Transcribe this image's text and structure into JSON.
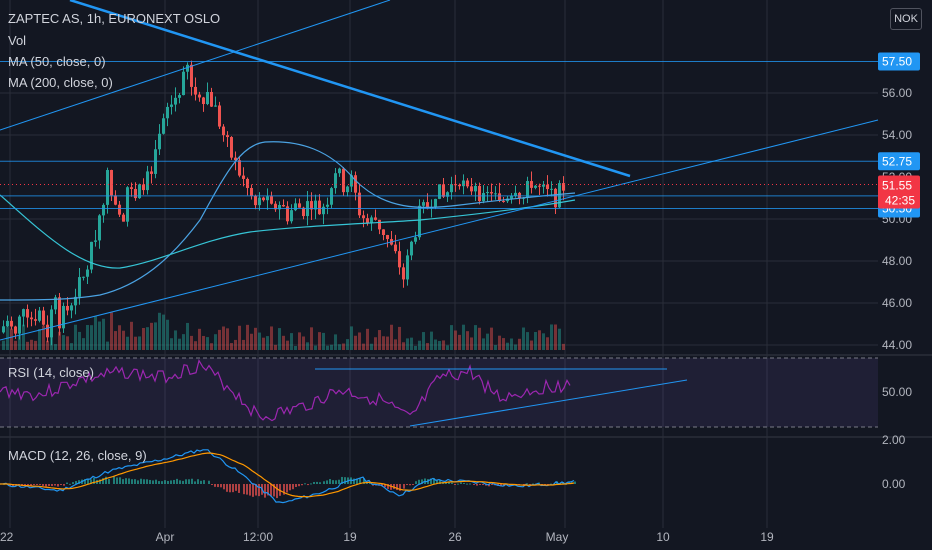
{
  "header": {
    "title": "ZAPTEC AS, 1h, EURONEXT OSLO",
    "indicators": [
      "Vol",
      "MA (50, close, 0)",
      "MA (200, close, 0)"
    ],
    "currency": "NOK"
  },
  "colors": {
    "background": "#131722",
    "grid": "#2a2e39",
    "up": "#26a69a",
    "down": "#ef5350",
    "trendline": "#2196f3",
    "rsi": "#9c27b0",
    "macd": "#2196f3",
    "signal": "#ff9800",
    "text": "#b2b5be",
    "price_tag": "#f23645",
    "level_tag": "#2196f3"
  },
  "chart_data": [
    {
      "type": "candlestick",
      "pane": "price",
      "title": "ZAPTEC AS, 1h, EURONEXT OSLO",
      "y_ticks": [
        44.0,
        46.0,
        48.0,
        50.0,
        54.0,
        56.0
      ],
      "ylim": [
        43.0,
        58.4
      ],
      "last_price": 51.55,
      "countdown": "42:35",
      "horizontal_levels": [
        57.5,
        52.75,
        51.1,
        50.5
      ],
      "level_labels": [
        "57.50",
        "52.75",
        "51.10",
        "50.50"
      ],
      "hidden_tick_behind_price": "52.00",
      "x_ticks": [
        "22",
        "Apr",
        "12:00",
        "19",
        "26",
        "May",
        "10",
        "19"
      ],
      "ohlc_path": [
        {
          "t": 0,
          "c": 44.6
        },
        {
          "t": 2,
          "c": 45.2
        },
        {
          "t": 4,
          "c": 44.4
        },
        {
          "t": 6,
          "c": 46.0
        },
        {
          "t": 8,
          "c": 45.3
        },
        {
          "t": 10,
          "c": 45.6
        },
        {
          "t": 12,
          "c": 44.6
        },
        {
          "t": 14,
          "c": 46.6
        },
        {
          "t": 15,
          "c": 45.2
        },
        {
          "t": 17,
          "c": 45.7
        },
        {
          "t": 19,
          "c": 46.5
        },
        {
          "t": 21,
          "c": 47.2
        },
        {
          "t": 23,
          "c": 48.5
        },
        {
          "t": 25,
          "c": 50.2
        },
        {
          "t": 27,
          "c": 52.0
        },
        {
          "t": 29,
          "c": 51.0
        },
        {
          "t": 31,
          "c": 50.2
        },
        {
          "t": 32,
          "c": 51.6
        },
        {
          "t": 34,
          "c": 50.8
        },
        {
          "t": 36,
          "c": 51.8
        },
        {
          "t": 38,
          "c": 52.0
        },
        {
          "t": 40,
          "c": 53.8
        },
        {
          "t": 42,
          "c": 55.2
        },
        {
          "t": 44,
          "c": 55.8
        },
        {
          "t": 46,
          "c": 56.6
        },
        {
          "t": 47,
          "c": 57.2
        },
        {
          "t": 48,
          "c": 56.2
        },
        {
          "t": 50,
          "c": 55.8
        },
        {
          "t": 52,
          "c": 56.0
        },
        {
          "t": 54,
          "c": 55.2
        },
        {
          "t": 56,
          "c": 54.0
        },
        {
          "t": 58,
          "c": 53.0
        },
        {
          "t": 60,
          "c": 52.2
        },
        {
          "t": 62,
          "c": 51.4
        },
        {
          "t": 64,
          "c": 50.6
        },
        {
          "t": 66,
          "c": 51.0
        },
        {
          "t": 68,
          "c": 50.4
        },
        {
          "t": 70,
          "c": 50.8
        },
        {
          "t": 72,
          "c": 50.2
        },
        {
          "t": 74,
          "c": 50.6
        },
        {
          "t": 76,
          "c": 50.5
        },
        {
          "t": 78,
          "c": 50.9
        },
        {
          "t": 80,
          "c": 50.4
        },
        {
          "t": 82,
          "c": 51.0
        },
        {
          "t": 84,
          "c": 52.4
        },
        {
          "t": 86,
          "c": 51.6
        },
        {
          "t": 88,
          "c": 51.8
        },
        {
          "t": 90,
          "c": 50.4
        },
        {
          "t": 92,
          "c": 49.8
        },
        {
          "t": 94,
          "c": 50.0
        },
        {
          "t": 96,
          "c": 49.4
        },
        {
          "t": 98,
          "c": 48.6
        },
        {
          "t": 100,
          "c": 47.8
        },
        {
          "t": 101,
          "c": 47.2
        },
        {
          "t": 103,
          "c": 48.8
        },
        {
          "t": 105,
          "c": 50.2
        },
        {
          "t": 107,
          "c": 50.6
        },
        {
          "t": 109,
          "c": 51.4
        },
        {
          "t": 111,
          "c": 51.0
        },
        {
          "t": 113,
          "c": 51.6
        },
        {
          "t": 115,
          "c": 52.0
        },
        {
          "t": 117,
          "c": 51.2
        },
        {
          "t": 119,
          "c": 51.8
        },
        {
          "t": 121,
          "c": 50.8
        },
        {
          "t": 123,
          "c": 51.4
        },
        {
          "t": 125,
          "c": 50.6
        },
        {
          "t": 127,
          "c": 51.2
        },
        {
          "t": 129,
          "c": 51.6
        },
        {
          "t": 131,
          "c": 51.0
        },
        {
          "t": 133,
          "c": 51.8
        },
        {
          "t": 135,
          "c": 51.4
        },
        {
          "t": 137,
          "c": 51.2
        },
        {
          "t": 139,
          "c": 51.0
        },
        {
          "t": 141,
          "c": 51.55
        }
      ]
    },
    {
      "type": "line",
      "pane": "rsi",
      "title": "RSI (14, close)",
      "y_ticks": [
        50.0
      ],
      "bands": [
        70,
        30
      ],
      "ylim": [
        25,
        75
      ]
    },
    {
      "type": "line",
      "pane": "macd",
      "title": "MACD (12, 26, close, 9)",
      "y_ticks": [
        2.0,
        0.0
      ],
      "ylim": [
        -1.2,
        2.0
      ],
      "series": [
        {
          "name": ""
        },
        {
          "name": ""
        }
      ]
    }
  ]
}
